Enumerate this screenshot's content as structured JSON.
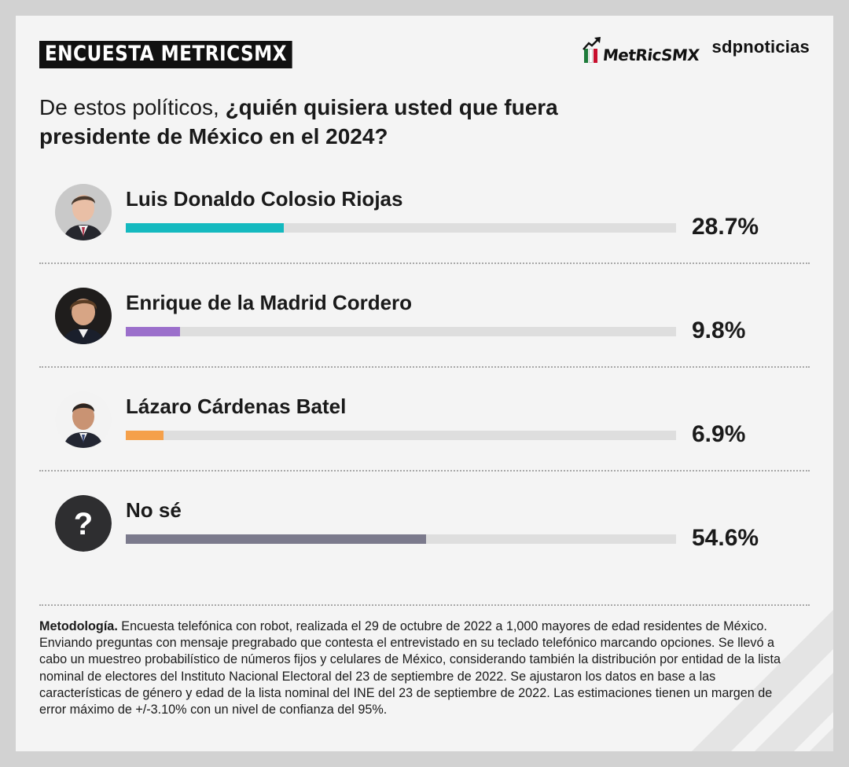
{
  "header": {
    "tag": "ENCUESTA METRICSMX",
    "logo_metrics": "MetRicSMX",
    "logo_sdp": "sdpnoticias",
    "flag_colors": [
      "#1e7b3a",
      "#ffffff",
      "#c8102e"
    ]
  },
  "question": {
    "prefix": "De estos políticos, ",
    "bold": "¿quién quisiera usted que fuera presidente de México en el 2024?"
  },
  "chart_data": {
    "type": "bar",
    "orientation": "horizontal",
    "title": "De estos políticos, ¿quién quisiera usted que fuera presidente de México en el 2024?",
    "xlim": [
      0,
      100
    ],
    "unit": "%",
    "categories": [
      "Luis Donaldo Colosio Riojas",
      "Enrique de la Madrid Cordero",
      "Lázaro Cárdenas Batel",
      "No sé"
    ],
    "values": [
      28.7,
      9.8,
      6.9,
      54.6
    ],
    "labels": [
      "28.7%",
      "9.8%",
      "6.9%",
      "54.6%"
    ],
    "colors": [
      "#14b9bf",
      "#9b6fcb",
      "#f5a04a",
      "#7b7a8c"
    ],
    "track_color": "#dedede"
  },
  "methodology": {
    "label": "Metodología.",
    "text": " Encuesta telefónica con robot, realizada el 29 de octubre de 2022 a 1,000 mayores de edad residentes de México. Enviando preguntas con mensaje pregrabado que contesta el entrevistado en su teclado telefónico marcando opciones. Se llevó a cabo un muestreo probabilístico de números fijos y celulares de México, considerando también la distribución por entidad de la lista nominal de electores del Instituto Nacional Electoral del 23 de septiembre de 2022. Se ajustaron los datos en base a las características de género y edad de la lista nominal del INE del 23 de septiembre de 2022. Las estimaciones tienen un margen de error máximo de +/-3.10% con un nivel de confianza del 95%."
  }
}
